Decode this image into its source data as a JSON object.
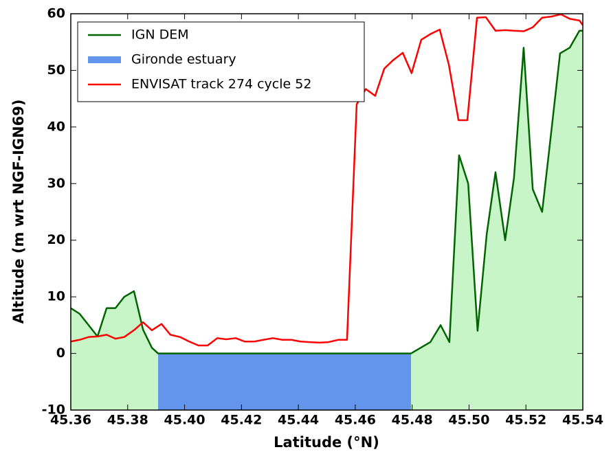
{
  "chart_data": {
    "type": "line",
    "xlabel": "Latitude (°N)",
    "ylabel": "Altitude (m wrt NGF-IGN69)",
    "xlim": [
      45.36,
      45.54
    ],
    "ylim": [
      -10,
      60
    ],
    "xticks": [
      45.36,
      45.38,
      {
        "value": 45.4,
        "label": "45.40"
      },
      45.42,
      45.44,
      45.46,
      45.48,
      {
        "value": 45.5,
        "label": "45.50"
      },
      45.52,
      45.54
    ],
    "yticks": [
      -10,
      0,
      10,
      20,
      30,
      40,
      50,
      60
    ],
    "legend": "upper left",
    "series": [
      {
        "name": "IGN DEM",
        "color": "#006400",
        "fill_color": "#c8f5c8",
        "style": "line",
        "x": [
          45.36,
          45.3631,
          45.3694,
          45.3726,
          45.3757,
          45.3788,
          45.3822,
          45.3854,
          45.3885,
          45.3907,
          45.4796,
          45.4864,
          45.49,
          45.4931,
          45.4965,
          45.4997,
          45.503,
          45.5062,
          45.5093,
          45.5127,
          45.5158,
          45.5192,
          45.5224,
          45.5257,
          45.5291,
          45.532,
          45.5354,
          45.5388,
          45.54
        ],
        "values": [
          8,
          7,
          3,
          8,
          8,
          10,
          11,
          4.2,
          1,
          0,
          0,
          2,
          5,
          2,
          35,
          30,
          4,
          21,
          32,
          20,
          31,
          54,
          29,
          25,
          40,
          53,
          54,
          57,
          57
        ]
      },
      {
        "name": "Gironde estuary",
        "color": "#6495ed",
        "style": "fill",
        "x": [
          45.3907,
          45.4796
        ],
        "values": [
          0,
          0
        ]
      },
      {
        "name": "ENVISAT track 274 cycle 52",
        "color": "#ff0000",
        "style": "line",
        "x": [
          45.36,
          45.3631,
          45.3663,
          45.3694,
          45.3726,
          45.3757,
          45.3788,
          45.3822,
          45.3854,
          45.3885,
          45.3919,
          45.395,
          45.3984,
          45.4016,
          45.4049,
          45.4081,
          45.4115,
          45.4146,
          45.418,
          45.4211,
          45.4245,
          45.4277,
          45.431,
          45.4344,
          45.4376,
          45.4407,
          45.4441,
          45.4475,
          45.4506,
          45.454,
          45.4571,
          45.4605,
          45.4637,
          45.467,
          45.4702,
          45.4733,
          45.4767,
          45.4798,
          45.4832,
          45.4864,
          45.4897,
          45.4929,
          45.4963,
          45.4994,
          45.5028,
          45.5059,
          45.5093,
          45.5127,
          45.5158,
          45.5192,
          45.5224,
          45.5257,
          45.5289,
          45.5323,
          45.5354,
          45.5388,
          45.54
        ],
        "values": [
          2.1,
          2.4,
          2.9,
          3.0,
          3.3,
          2.6,
          2.9,
          4.1,
          5.5,
          4.1,
          5.2,
          3.3,
          2.9,
          2.1,
          1.4,
          1.4,
          2.7,
          2.5,
          2.7,
          2.1,
          2.1,
          2.4,
          2.7,
          2.4,
          2.4,
          2.1,
          2.0,
          1.9,
          2.0,
          2.4,
          2.4,
          44,
          46.7,
          45.5,
          50.3,
          51.8,
          53.1,
          49.5,
          55.4,
          56.4,
          57.2,
          51,
          41.2,
          41.2,
          59.3,
          59.4,
          57,
          57.1,
          57,
          56.9,
          57.6,
          59.3,
          59.5,
          59.9,
          59.1,
          58.8,
          58
        ]
      }
    ]
  }
}
